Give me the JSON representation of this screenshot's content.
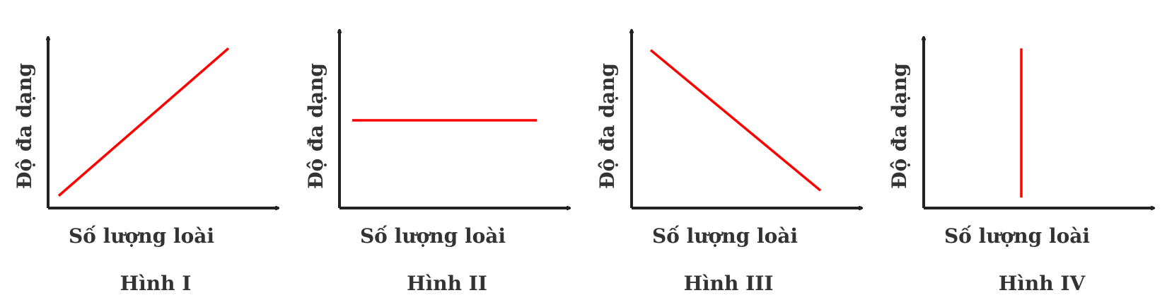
{
  "colors": {
    "axis": "#222222",
    "line": "#ff0000",
    "text": "#333333"
  },
  "chart_data": [
    {
      "type": "line",
      "caption": "Hình I",
      "xlabel": "Số lượng loài",
      "ylabel": "Độ đa dạng",
      "xlim": [
        0,
        1
      ],
      "ylim": [
        0,
        1
      ],
      "series": [
        {
          "x": [
            0.05,
            0.85
          ],
          "y": [
            0.07,
            0.91
          ]
        }
      ]
    },
    {
      "type": "line",
      "caption": "Hình II",
      "xlabel": "Số lượng loài",
      "ylabel": "Độ đa dạng",
      "xlim": [
        0,
        1
      ],
      "ylim": [
        0,
        1
      ],
      "series": [
        {
          "x": [
            0.06,
            0.93
          ],
          "y": [
            0.5,
            0.5
          ]
        }
      ]
    },
    {
      "type": "line",
      "caption": "Hình III",
      "xlabel": "Số lượng loài",
      "ylabel": "Độ đa dạng",
      "xlim": [
        0,
        1
      ],
      "ylim": [
        0,
        1
      ],
      "series": [
        {
          "x": [
            0.09,
            0.89
          ],
          "y": [
            0.9,
            0.1
          ]
        }
      ]
    },
    {
      "type": "line",
      "caption": "Hình IV",
      "xlabel": "Số lượng loài",
      "ylabel": "Độ đa dạng",
      "xlim": [
        0,
        1
      ],
      "ylim": [
        0,
        1
      ],
      "series": [
        {
          "x": [
            0.46,
            0.46
          ],
          "y": [
            0.06,
            0.91
          ]
        }
      ]
    }
  ]
}
